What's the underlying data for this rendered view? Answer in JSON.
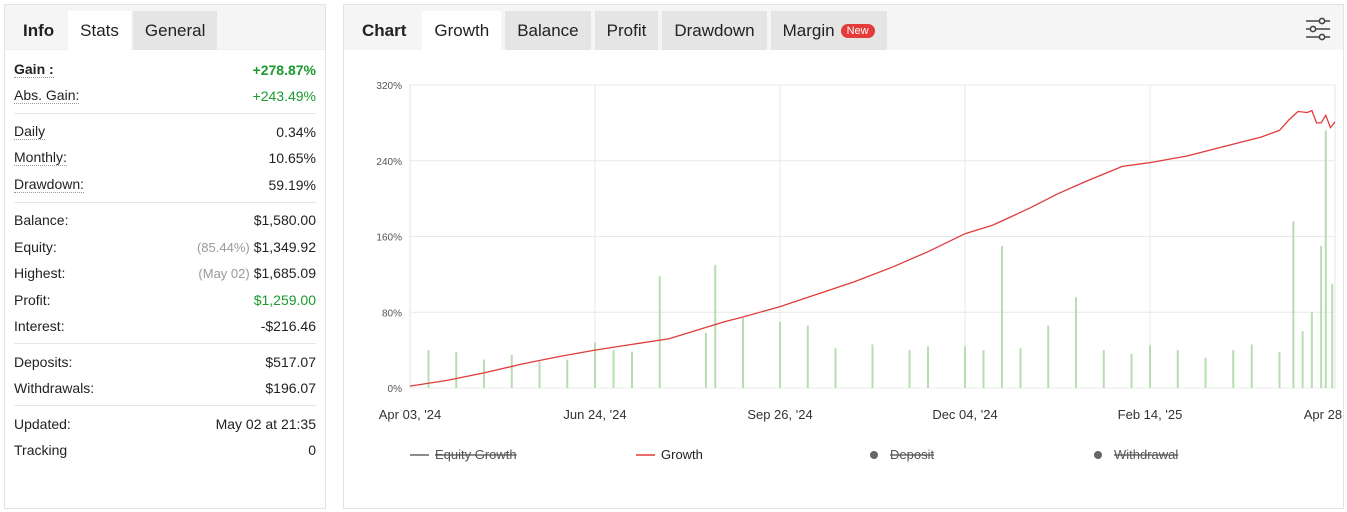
{
  "left": {
    "tabs": [
      "Info",
      "Stats",
      "General"
    ],
    "rows": [
      {
        "label": "Gain :",
        "value": "+278.87%",
        "style": "gain"
      },
      {
        "label": "Abs. Gain:",
        "value": "+243.49%",
        "style": "green"
      },
      {
        "sep": true
      },
      {
        "label": "Daily",
        "value": "0.34%"
      },
      {
        "label": "Monthly:",
        "value": "10.65%"
      },
      {
        "label": "Drawdown:",
        "value": "59.19%"
      },
      {
        "sep": true
      },
      {
        "label": "Balance:",
        "value": "$1,580.00",
        "plain": true
      },
      {
        "label": "Equity:",
        "note": "(85.44%)",
        "value": "$1,349.92",
        "plain": true
      },
      {
        "label": "Highest:",
        "note": "(May 02)",
        "value": "$1,685.09",
        "plain": true
      },
      {
        "label": "Profit:",
        "value": "$1,259.00",
        "style": "green",
        "plain": true
      },
      {
        "label": "Interest:",
        "value": "-$216.46",
        "plain": true
      },
      {
        "sep": true
      },
      {
        "label": "Deposits:",
        "value": "$517.07",
        "plain": true
      },
      {
        "label": "Withdrawals:",
        "value": "$196.07",
        "plain": true
      },
      {
        "sep": true
      },
      {
        "label": "Updated:",
        "value": "May 02 at 21:35",
        "plain": true
      },
      {
        "label": "Tracking",
        "value": "0",
        "plain": true
      }
    ]
  },
  "right": {
    "tabs": [
      "Chart",
      "Growth",
      "Balance",
      "Profit",
      "Drawdown",
      "Margin"
    ],
    "badge": "New",
    "settings_icon": "sliders-icon"
  },
  "colors": {
    "growth": "#e03b3b",
    "bars": "#b6deb0",
    "equity": "#666666",
    "accent_green": "#1a9a2f"
  },
  "chart_data": {
    "type": "line",
    "ylim": [
      0,
      320
    ],
    "y_ticks": [
      "0%",
      "80%",
      "160%",
      "240%",
      "320%"
    ],
    "x_ticks": [
      "Apr 03, '24",
      "Jun 24, '24",
      "Sep 26, '24",
      "Dec 04, '24",
      "Feb 14, '25",
      "Apr 28, '25"
    ],
    "legend": [
      {
        "name": "Equity Growth",
        "enabled": false
      },
      {
        "name": "Growth",
        "enabled": true
      },
      {
        "name": "Deposit",
        "enabled": false
      },
      {
        "name": "Withdrawal",
        "enabled": false
      }
    ],
    "series": [
      {
        "name": "Growth",
        "points": [
          [
            0,
            2
          ],
          [
            0.04,
            8
          ],
          [
            0.08,
            16
          ],
          [
            0.12,
            25
          ],
          [
            0.16,
            33
          ],
          [
            0.2,
            40
          ],
          [
            0.24,
            46
          ],
          [
            0.28,
            52
          ],
          [
            0.3,
            58
          ],
          [
            0.32,
            64
          ],
          [
            0.34,
            70
          ],
          [
            0.36,
            75
          ],
          [
            0.4,
            86
          ],
          [
            0.44,
            99
          ],
          [
            0.48,
            112
          ],
          [
            0.52,
            127
          ],
          [
            0.56,
            144
          ],
          [
            0.6,
            163
          ],
          [
            0.63,
            172
          ],
          [
            0.67,
            190
          ],
          [
            0.7,
            205
          ],
          [
            0.73,
            218
          ],
          [
            0.77,
            234
          ],
          [
            0.8,
            238
          ],
          [
            0.84,
            245
          ],
          [
            0.88,
            255
          ],
          [
            0.92,
            265
          ],
          [
            0.94,
            272
          ],
          [
            0.95,
            283
          ],
          [
            0.96,
            292
          ],
          [
            0.97,
            291
          ],
          [
            0.975,
            293
          ],
          [
            0.98,
            280
          ],
          [
            0.985,
            280
          ],
          [
            0.99,
            288
          ],
          [
            0.995,
            275
          ],
          [
            1.0,
            281
          ]
        ]
      },
      {
        "name": "Bars",
        "type": "bar",
        "values": [
          [
            0.02,
            40
          ],
          [
            0.05,
            38
          ],
          [
            0.08,
            30
          ],
          [
            0.11,
            35
          ],
          [
            0.14,
            28
          ],
          [
            0.17,
            30
          ],
          [
            0.2,
            48
          ],
          [
            0.22,
            40
          ],
          [
            0.24,
            38
          ],
          [
            0.27,
            118
          ],
          [
            0.32,
            58
          ],
          [
            0.33,
            130
          ],
          [
            0.36,
            74
          ],
          [
            0.4,
            70
          ],
          [
            0.43,
            66
          ],
          [
            0.46,
            42
          ],
          [
            0.5,
            46
          ],
          [
            0.54,
            40
          ],
          [
            0.56,
            44
          ],
          [
            0.6,
            44
          ],
          [
            0.62,
            40
          ],
          [
            0.64,
            150
          ],
          [
            0.66,
            42
          ],
          [
            0.69,
            66
          ],
          [
            0.72,
            96
          ],
          [
            0.75,
            40
          ],
          [
            0.78,
            36
          ],
          [
            0.8,
            45
          ],
          [
            0.83,
            40
          ],
          [
            0.86,
            32
          ],
          [
            0.89,
            40
          ],
          [
            0.91,
            46
          ],
          [
            0.94,
            38
          ],
          [
            0.955,
            176
          ],
          [
            0.965,
            60
          ],
          [
            0.975,
            80
          ],
          [
            0.985,
            150
          ],
          [
            0.99,
            272
          ],
          [
            0.997,
            110
          ]
        ]
      }
    ]
  }
}
